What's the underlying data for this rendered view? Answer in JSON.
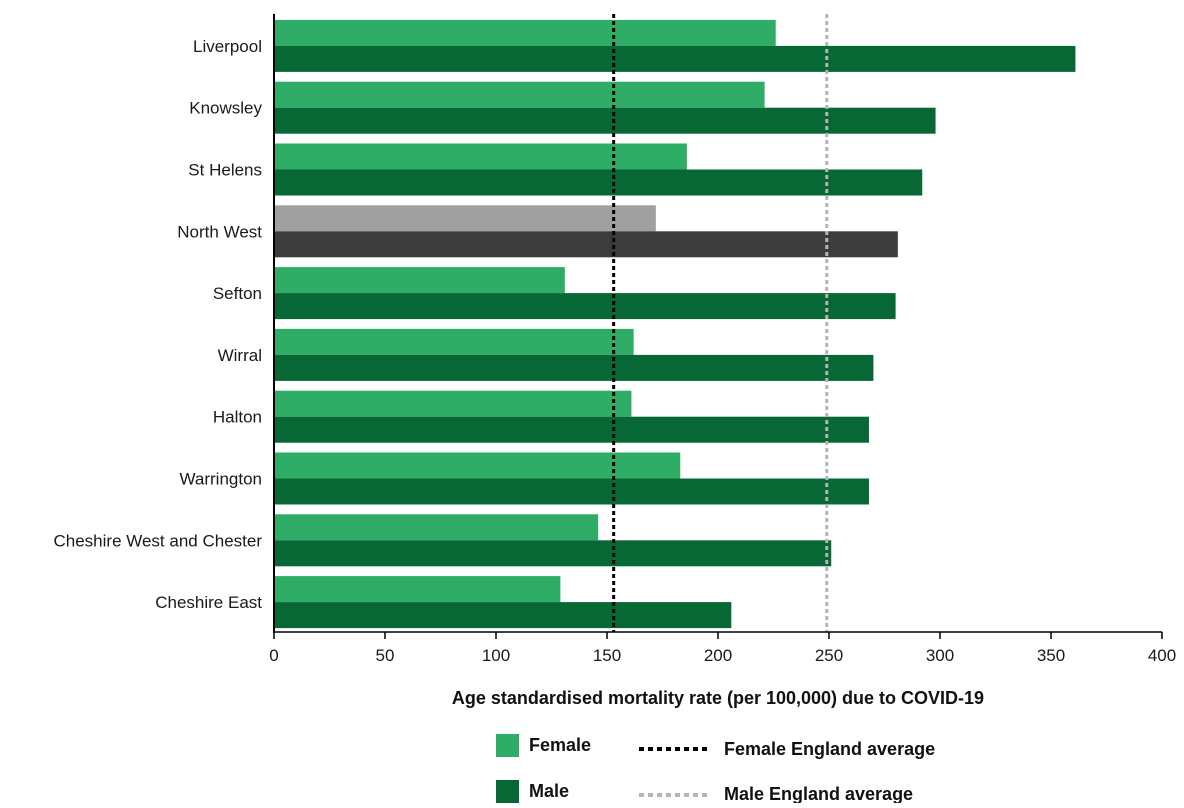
{
  "chart_data": {
    "type": "bar",
    "orientation": "horizontal",
    "categories": [
      "Liverpool",
      "Knowsley",
      "St Helens",
      "North West",
      "Sefton",
      "Wirral",
      "Halton",
      "Warrington",
      "Cheshire West and Chester",
      "Cheshire East"
    ],
    "series": [
      {
        "name": "Female",
        "values": [
          226,
          221,
          186,
          172,
          131,
          162,
          161,
          183,
          146,
          129
        ]
      },
      {
        "name": "Male",
        "values": [
          361,
          298,
          292,
          281,
          280,
          270,
          268,
          268,
          251,
          206
        ]
      }
    ],
    "highlight_category": "North West",
    "reference_lines": [
      {
        "name": "Female England average",
        "value": 153
      },
      {
        "name": "Male England average",
        "value": 249
      }
    ],
    "xlabel": "Age standardised mortality rate (per 100,000) due to COVID-19",
    "ylabel": "",
    "xlim": [
      0,
      400
    ],
    "xticks": [
      "0",
      "50",
      "100",
      "150",
      "200",
      "250",
      "300",
      "350",
      "400"
    ],
    "grid": false,
    "legend_position": "bottom",
    "colors": {
      "female": "#2fac66",
      "male": "#076735",
      "highlight_female": "#a0a0a0",
      "highlight_male": "#3c3c3c",
      "female_avg_line": "#000000",
      "male_avg_line": "#b5b5b5",
      "axis": "#000000"
    }
  }
}
